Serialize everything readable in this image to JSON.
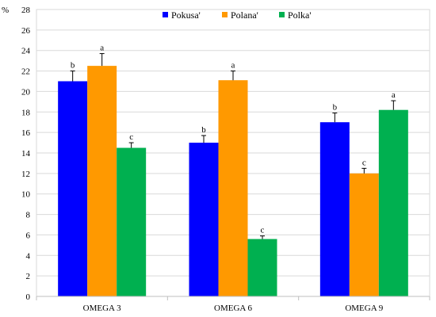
{
  "chart_data": {
    "type": "bar",
    "ylabel": "%",
    "ylim": [
      0,
      28
    ],
    "yticks": [
      0,
      2,
      4,
      6,
      8,
      10,
      12,
      14,
      16,
      18,
      20,
      22,
      24,
      26,
      28
    ],
    "categories": [
      "OMEGA 3",
      "OMEGA 6",
      "OMEGA 9"
    ],
    "series": [
      {
        "name": "Pokusa'",
        "color": "#0000ff",
        "values": [
          21.0,
          15.0,
          17.0
        ],
        "errors": [
          1.0,
          0.7,
          0.9
        ],
        "labels": [
          "b",
          "b",
          "b"
        ]
      },
      {
        "name": "Polana'",
        "color": "#ff9900",
        "values": [
          22.5,
          21.1,
          12.0
        ],
        "errors": [
          1.2,
          0.9,
          0.5
        ],
        "labels": [
          "a",
          "a",
          "c"
        ]
      },
      {
        "name": "Polka'",
        "color": "#00b050",
        "values": [
          14.5,
          5.6,
          18.2
        ],
        "errors": [
          0.5,
          0.3,
          0.9
        ],
        "labels": [
          "c",
          "c",
          "a"
        ]
      }
    ],
    "legend_position": "top-center",
    "grid": "horizontal"
  }
}
